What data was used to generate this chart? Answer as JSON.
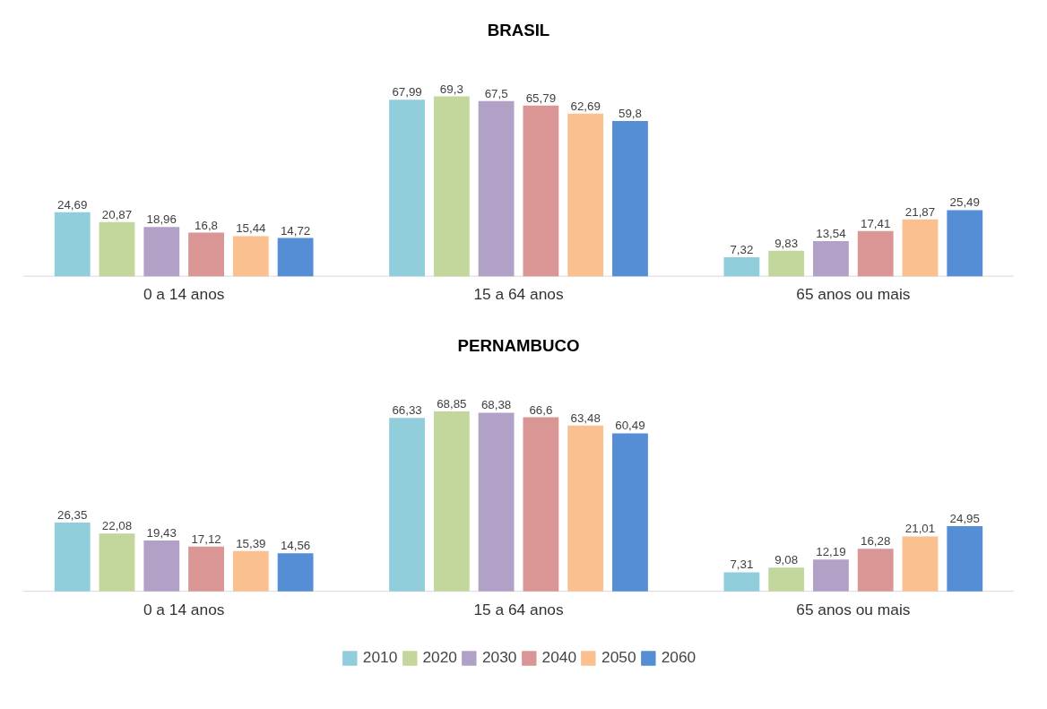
{
  "chart_data": [
    {
      "type": "bar",
      "title": "BRASIL",
      "categories": [
        "0 a 14 anos",
        "15 a 64 anos",
        "65 anos ou mais"
      ],
      "legend": "bottom",
      "tick_labels": "x",
      "series": [
        {
          "name": "2010",
          "color": "#92cddc",
          "values": [
            24.69,
            67.99,
            7.32
          ],
          "value_labels": [
            "24,69",
            "67,99",
            "7,32"
          ]
        },
        {
          "name": "2020",
          "color": "#c3d69b",
          "values": [
            20.87,
            69.3,
            9.83
          ],
          "value_labels": [
            "20,87",
            "69,3",
            "9,83"
          ]
        },
        {
          "name": "2030",
          "color": "#b2a1c7",
          "values": [
            18.96,
            67.5,
            13.54
          ],
          "value_labels": [
            "18,96",
            "67,5",
            "13,54"
          ]
        },
        {
          "name": "2040",
          "color": "#d99694",
          "values": [
            16.8,
            65.79,
            17.41
          ],
          "value_labels": [
            "16,8",
            "65,79",
            "17,41"
          ]
        },
        {
          "name": "2050",
          "color": "#fac090",
          "values": [
            15.44,
            62.69,
            21.87
          ],
          "value_labels": [
            "15,44",
            "62,69",
            "21,87"
          ]
        },
        {
          "name": "2060",
          "color": "#558ed5",
          "values": [
            14.72,
            59.8,
            25.49
          ],
          "value_labels": [
            "14,72",
            "59,8",
            "25,49"
          ]
        }
      ]
    },
    {
      "type": "bar",
      "title": "PERNAMBUCO",
      "categories": [
        "0 a 14 anos",
        "15 a 64 anos",
        "65 anos ou mais"
      ],
      "legend": "bottom",
      "tick_labels": "x",
      "series": [
        {
          "name": "2010",
          "color": "#92cddc",
          "values": [
            26.35,
            66.33,
            7.31
          ],
          "value_labels": [
            "26,35",
            "66,33",
            "7,31"
          ]
        },
        {
          "name": "2020",
          "color": "#c3d69b",
          "values": [
            22.08,
            68.85,
            9.08
          ],
          "value_labels": [
            "22,08",
            "68,85",
            "9,08"
          ]
        },
        {
          "name": "2030",
          "color": "#b2a1c7",
          "values": [
            19.43,
            68.38,
            12.19
          ],
          "value_labels": [
            "19,43",
            "68,38",
            "12,19"
          ]
        },
        {
          "name": "2040",
          "color": "#d99694",
          "values": [
            17.12,
            66.6,
            16.28
          ],
          "value_labels": [
            "17,12",
            "66,6",
            "16,28"
          ]
        },
        {
          "name": "2050",
          "color": "#fac090",
          "values": [
            15.39,
            63.48,
            21.01
          ],
          "value_labels": [
            "15,39",
            "63,48",
            "21,01"
          ]
        },
        {
          "name": "2060",
          "color": "#558ed5",
          "values": [
            14.56,
            60.49,
            24.95
          ],
          "value_labels": [
            "14,56",
            "60,49",
            "24,95"
          ]
        }
      ]
    }
  ]
}
